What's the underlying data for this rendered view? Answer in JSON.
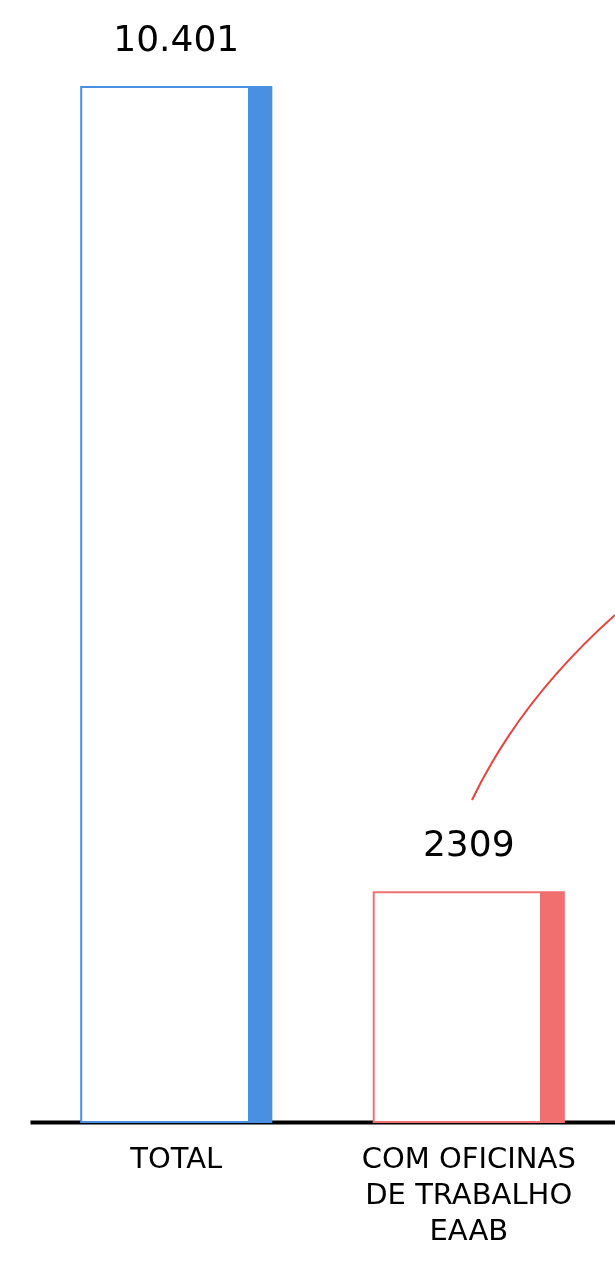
{
  "chart_data": {
    "type": "bar",
    "categories": [
      "TOTAL",
      "COM OFICINAS\nDE TRABALHO\nEAAB"
    ],
    "values": [
      10401,
      2309
    ],
    "colors": [
      "#4a90e2",
      "#f07070"
    ],
    "value_labels": [
      "10.401",
      "2309"
    ]
  }
}
